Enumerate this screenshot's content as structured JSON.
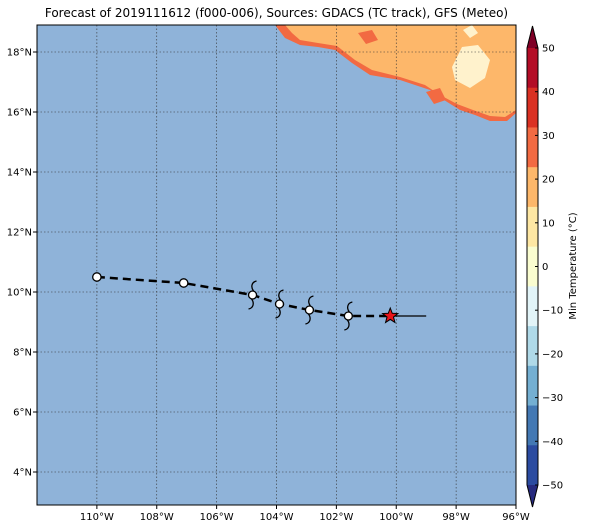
{
  "title": "Forecast of 2019111612 (f000-006), Sources: GDACS (TC track), GFS (Meteo)",
  "map": {
    "lon_range": [
      -112,
      -96
    ],
    "lat_range": [
      2.9,
      18.9
    ],
    "lon_ticks": [
      "110°W",
      "108°W",
      "106°W",
      "104°W",
      "102°W",
      "100°W",
      "98°W",
      "96°W"
    ],
    "lat_ticks": [
      "4°N",
      "6°N",
      "8°N",
      "10°N",
      "12°N",
      "14°N",
      "16°N",
      "18°N"
    ],
    "grid": true,
    "ocean_color": "#8fb3d9",
    "land_colors": [
      "#fdb76a",
      "#f26a42",
      "#fff2cc"
    ]
  },
  "track": {
    "color": "#000000",
    "points": [
      {
        "lon": -110.0,
        "lat": 10.5,
        "marker": "circle"
      },
      {
        "lon": -107.1,
        "lat": 10.3,
        "marker": "circle"
      },
      {
        "lon": -104.8,
        "lat": 9.9,
        "marker": "storm"
      },
      {
        "lon": -103.9,
        "lat": 9.6,
        "marker": "storm"
      },
      {
        "lon": -102.9,
        "lat": 9.4,
        "marker": "storm"
      },
      {
        "lon": -101.6,
        "lat": 9.2,
        "marker": "storm"
      },
      {
        "lon": -100.2,
        "lat": 9.2,
        "marker": "current"
      }
    ],
    "current_color": "#e8141b",
    "tail_to_lon": -99.0
  },
  "colorbar": {
    "label": "Min Temperature (°C)",
    "ticks": [
      "50",
      "40",
      "30",
      "20",
      "10",
      "0",
      "−10",
      "−20",
      "−30",
      "−40",
      "−50"
    ],
    "colors": [
      "#7f0026",
      "#b30d26",
      "#da3123",
      "#f26a42",
      "#fdb76a",
      "#fee7a3",
      "#fafdd0",
      "#e2f4f8",
      "#afd9e8",
      "#74afd2",
      "#4378b3",
      "#2b4ba0",
      "#262a7e"
    ]
  }
}
